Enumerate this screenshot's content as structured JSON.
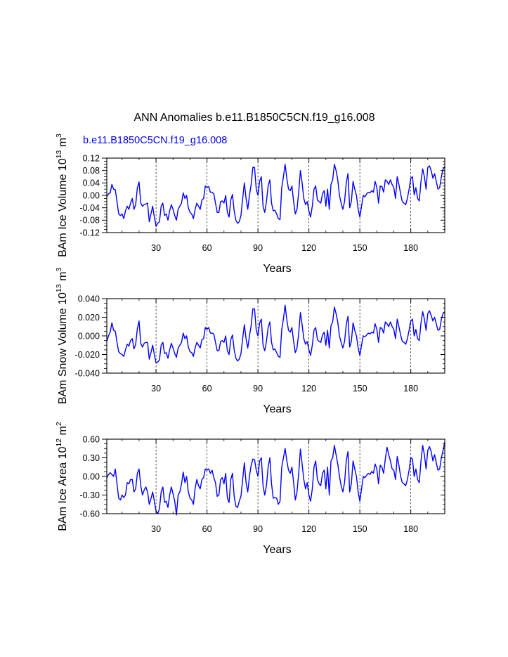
{
  "figure": {
    "title": "ANN Anomalies b.e11.B1850C5CN.f19_g16.008",
    "legend_label": "b.e11.B1850C5CN.f19_g16.008",
    "colors": {
      "series": "#0000ff",
      "axis": "#000000",
      "grid": "#000000",
      "legend": "#0000ff"
    }
  },
  "chart_data": [
    {
      "type": "line",
      "ylabel": "BAm Ice Volume 10^13 m^3",
      "ylabel_parts": {
        "base": "BAm Ice Volume 10",
        "exp": "13",
        "unit": " m",
        "unit_exp": "3"
      },
      "xlabel": "Years",
      "xlim": [
        1,
        200
      ],
      "ylim": [
        -0.12,
        0.12
      ],
      "xticks": [
        30,
        60,
        90,
        120,
        150,
        180
      ],
      "xtick_labels": [
        "30",
        "60",
        "90",
        "120",
        "150",
        "180"
      ],
      "yticks": [
        -0.12,
        -0.08,
        -0.04,
        0.0,
        0.04,
        0.08,
        0.12
      ],
      "ytick_labels": [
        "-0.12",
        "-0.08",
        "-0.04",
        "0.00",
        "0.04",
        "0.08",
        "0.12"
      ],
      "vlines": [
        30,
        60,
        90,
        120,
        150,
        180
      ],
      "series": [
        {
          "name": "b.e11.B1850C5CN.f19_g16.008",
          "x_start": 1,
          "values": [
            -0.005,
            0.005,
            0.008,
            0.035,
            0.02,
            0.018,
            -0.02,
            -0.06,
            -0.065,
            -0.06,
            -0.075,
            -0.05,
            -0.035,
            -0.045,
            -0.025,
            -0.01,
            -0.045,
            -0.03,
            0.025,
            0.043,
            -0.025,
            -0.035,
            -0.03,
            -0.028,
            -0.025,
            -0.085,
            -0.06,
            -0.035,
            -0.07,
            -0.1,
            -0.09,
            -0.085,
            -0.035,
            -0.025,
            -0.065,
            -0.06,
            -0.08,
            -0.05,
            -0.03,
            -0.045,
            -0.065,
            -0.08,
            -0.045,
            -0.035,
            -0.025,
            0.008,
            -0.01,
            0.0,
            -0.04,
            -0.055,
            -0.06,
            -0.075,
            -0.045,
            -0.025,
            -0.035,
            -0.045,
            -0.015,
            -0.01,
            0.03,
            0.025,
            0.028,
            0.01,
            0.01,
            0.005,
            -0.025,
            -0.055,
            -0.055,
            -0.02,
            -0.018,
            -0.025,
            0.0,
            -0.055,
            -0.07,
            -0.015,
            0.003,
            -0.05,
            -0.08,
            -0.09,
            -0.085,
            -0.065,
            -0.01,
            0.04,
            -0.01,
            -0.045,
            0.0,
            0.035,
            0.09,
            0.09,
            0.02,
            0.0,
            0.045,
            0.06,
            -0.035,
            -0.055,
            -0.02,
            0.03,
            0.05,
            -0.025,
            -0.05,
            -0.048,
            -0.06,
            -0.075,
            -0.078,
            0.025,
            0.06,
            0.1,
            0.055,
            0.02,
            0.015,
            0.03,
            -0.02,
            -0.06,
            -0.045,
            0.01,
            0.08,
            0.04,
            -0.01,
            -0.03,
            -0.02,
            -0.05,
            -0.07,
            -0.035,
            0.02,
            0.03,
            -0.015,
            -0.02,
            -0.025,
            0.005,
            0.015,
            -0.035,
            0.02,
            -0.045,
            0.035,
            0.05,
            0.1,
            0.08,
            0.05,
            0.0,
            -0.025,
            -0.045,
            -0.02,
            0.04,
            0.07,
            -0.04,
            -0.02,
            0.045,
            0.02,
            0.0,
            -0.045,
            -0.07,
            -0.035,
            0.0,
            -0.005,
            0.005,
            0.01,
            0.008,
            0.015,
            0.01,
            0.045,
            0.025,
            -0.025,
            0.03,
            0.028,
            0.01,
            0.05,
            0.045,
            0.035,
            0.05,
            0.035,
            0.025,
            -0.01,
            0.06,
            0.035,
            0.005,
            -0.02,
            -0.025,
            -0.03,
            -0.01,
            0.02,
            0.055,
            0.06,
            0.002,
            0.025,
            -0.01,
            -0.018,
            0.045,
            0.085,
            0.06,
            0.02,
            0.09,
            0.095,
            0.08,
            0.055,
            0.07,
            0.045,
            0.02,
            0.025,
            0.06,
            0.085,
            0.092
          ]
        }
      ]
    },
    {
      "type": "line",
      "ylabel": "BAm Snow Volume 10^13 m^3",
      "ylabel_parts": {
        "base": "BAm Snow Volume 10",
        "exp": "13",
        "unit": " m",
        "unit_exp": "3"
      },
      "xlabel": "Years",
      "xlim": [
        1,
        200
      ],
      "ylim": [
        -0.04,
        0.04
      ],
      "xticks": [
        30,
        60,
        90,
        120,
        150,
        180
      ],
      "xtick_labels": [
        "30",
        "60",
        "90",
        "120",
        "150",
        "180"
      ],
      "yticks": [
        -0.04,
        -0.02,
        0.0,
        0.02,
        0.04
      ],
      "ytick_labels": [
        "-0.040",
        "-0.020",
        "0.000",
        "0.020",
        "0.040"
      ],
      "vlines": [
        30,
        60,
        90,
        120,
        150,
        180
      ],
      "series": [
        {
          "name": "b.e11.B1850C5CN.f19_g16.008",
          "x_start": 1,
          "values": [
            -0.006,
            0.0,
            0.004,
            0.014,
            0.006,
            0.005,
            -0.007,
            -0.017,
            -0.019,
            -0.02,
            -0.022,
            -0.015,
            -0.009,
            -0.011,
            -0.005,
            -0.003,
            -0.014,
            -0.009,
            0.008,
            0.016,
            -0.008,
            -0.012,
            -0.008,
            -0.007,
            -0.007,
            -0.025,
            -0.018,
            -0.01,
            -0.02,
            -0.029,
            -0.028,
            -0.026,
            -0.01,
            -0.007,
            -0.019,
            -0.018,
            -0.024,
            -0.015,
            -0.008,
            -0.013,
            -0.019,
            -0.023,
            -0.013,
            -0.01,
            -0.007,
            0.003,
            -0.003,
            0.0,
            -0.012,
            -0.017,
            -0.018,
            -0.022,
            -0.013,
            -0.007,
            -0.01,
            -0.013,
            -0.004,
            -0.003,
            0.009,
            0.007,
            0.009,
            0.003,
            0.003,
            0.002,
            -0.007,
            -0.016,
            -0.016,
            -0.006,
            -0.005,
            -0.007,
            0.0,
            -0.016,
            -0.02,
            -0.004,
            0.001,
            -0.015,
            -0.024,
            -0.027,
            -0.025,
            -0.019,
            -0.003,
            0.012,
            -0.003,
            -0.013,
            0.0,
            0.011,
            0.029,
            0.029,
            0.006,
            0.0,
            0.014,
            0.018,
            -0.01,
            -0.016,
            -0.006,
            0.009,
            0.015,
            -0.007,
            -0.015,
            -0.014,
            -0.018,
            -0.022,
            -0.023,
            0.007,
            0.018,
            0.033,
            0.017,
            0.006,
            0.004,
            0.009,
            -0.006,
            -0.018,
            -0.013,
            0.003,
            0.025,
            0.012,
            -0.003,
            -0.009,
            -0.006,
            -0.015,
            -0.021,
            -0.01,
            0.006,
            0.009,
            -0.004,
            -0.006,
            -0.007,
            0.001,
            0.004,
            -0.01,
            0.006,
            -0.013,
            0.011,
            0.015,
            0.031,
            0.024,
            0.015,
            0.0,
            -0.007,
            -0.013,
            -0.006,
            0.012,
            0.021,
            -0.012,
            -0.006,
            0.014,
            0.006,
            0.0,
            -0.013,
            -0.021,
            -0.01,
            0.0,
            -0.001,
            0.001,
            0.003,
            0.002,
            0.004,
            0.003,
            0.013,
            0.007,
            -0.007,
            0.009,
            0.008,
            0.003,
            0.015,
            0.013,
            0.01,
            0.015,
            0.01,
            0.007,
            -0.003,
            0.018,
            0.01,
            0.001,
            -0.006,
            -0.007,
            -0.009,
            -0.003,
            0.006,
            0.016,
            0.018,
            0.0,
            0.007,
            -0.003,
            -0.005,
            0.014,
            0.026,
            0.018,
            0.006,
            0.024,
            0.027,
            0.022,
            0.016,
            0.02,
            0.013,
            0.006,
            0.007,
            0.018,
            0.024,
            0.026
          ]
        }
      ]
    },
    {
      "type": "line",
      "ylabel": "BAm Ice Area 10^12 m^2",
      "ylabel_parts": {
        "base": "BAm Ice Area 10",
        "exp": "12",
        "unit": " m",
        "unit_exp": "2"
      },
      "xlabel": "Years",
      "xlim": [
        1,
        200
      ],
      "ylim": [
        -0.6,
        0.6
      ],
      "xticks": [
        30,
        60,
        90,
        120,
        150,
        180
      ],
      "xtick_labels": [
        "30",
        "60",
        "90",
        "120",
        "150",
        "180"
      ],
      "yticks": [
        -0.6,
        -0.3,
        0.0,
        0.3,
        0.6
      ],
      "ytick_labels": [
        "-0.60",
        "-0.30",
        "0.00",
        "0.30",
        "0.60"
      ],
      "vlines": [
        30,
        60,
        90,
        120,
        150,
        180
      ],
      "series": [
        {
          "name": "b.e11.B1850C5CN.f19_g16.008",
          "x_start": 1,
          "values": [
            -0.02,
            0.03,
            0.06,
            0.03,
            0.0,
            0.12,
            -0.12,
            -0.35,
            -0.38,
            -0.3,
            -0.34,
            -0.3,
            -0.1,
            -0.12,
            -0.05,
            -0.05,
            -0.25,
            -0.2,
            0.05,
            0.12,
            -0.15,
            -0.3,
            -0.22,
            -0.17,
            -0.25,
            -0.45,
            -0.36,
            -0.25,
            -0.4,
            -0.56,
            -0.6,
            -0.52,
            -0.25,
            -0.17,
            -0.42,
            -0.4,
            -0.5,
            -0.3,
            -0.17,
            -0.28,
            -0.4,
            -0.62,
            -0.3,
            -0.25,
            -0.12,
            0.07,
            -0.1,
            0.0,
            -0.25,
            -0.35,
            -0.38,
            -0.45,
            -0.2,
            -0.05,
            -0.15,
            -0.2,
            -0.05,
            -0.02,
            0.12,
            0.1,
            0.12,
            0.05,
            0.1,
            -0.02,
            -0.1,
            -0.32,
            -0.3,
            -0.05,
            -0.02,
            -0.12,
            0.05,
            -0.35,
            -0.42,
            -0.05,
            0.05,
            -0.32,
            -0.48,
            -0.5,
            -0.4,
            -0.32,
            -0.05,
            0.22,
            -0.1,
            -0.25,
            0.0,
            0.18,
            0.28,
            0.27,
            0.1,
            0.0,
            0.25,
            0.3,
            -0.15,
            -0.3,
            -0.15,
            0.15,
            0.3,
            -0.12,
            -0.35,
            -0.34,
            -0.35,
            -0.45,
            -0.4,
            0.15,
            0.3,
            0.45,
            0.25,
            0.1,
            0.05,
            0.15,
            -0.1,
            -0.38,
            -0.25,
            0.05,
            0.44,
            0.2,
            -0.05,
            -0.2,
            -0.1,
            -0.3,
            -0.4,
            -0.2,
            0.15,
            0.25,
            -0.05,
            -0.12,
            -0.15,
            0.05,
            0.1,
            -0.2,
            0.15,
            -0.3,
            0.25,
            0.3,
            0.5,
            0.35,
            0.2,
            0.0,
            -0.15,
            -0.25,
            -0.1,
            0.25,
            0.4,
            -0.25,
            -0.12,
            0.25,
            0.12,
            0.0,
            -0.25,
            -0.4,
            -0.2,
            0.0,
            -0.02,
            0.02,
            0.05,
            0.03,
            0.08,
            0.05,
            0.2,
            0.12,
            -0.12,
            0.18,
            0.15,
            0.05,
            0.28,
            0.47,
            0.35,
            0.25,
            0.12,
            0.1,
            -0.05,
            0.32,
            0.18,
            0.0,
            -0.1,
            -0.12,
            -0.15,
            -0.05,
            0.1,
            0.3,
            0.28,
            0.0,
            0.12,
            -0.05,
            -0.1,
            0.25,
            0.5,
            0.35,
            0.12,
            0.42,
            0.48,
            0.4,
            0.25,
            0.35,
            0.22,
            0.1,
            0.12,
            0.3,
            0.42,
            0.55
          ]
        }
      ]
    }
  ]
}
